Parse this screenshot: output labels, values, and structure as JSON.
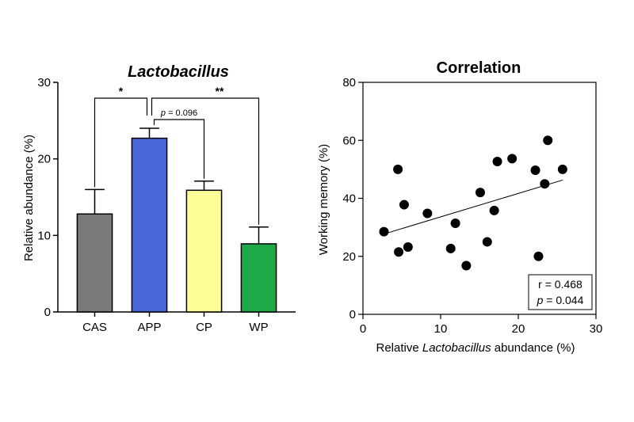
{
  "chart_data": [
    {
      "type": "bar",
      "title": "Lactobacillus",
      "xlabel": "",
      "ylabel": "Relative abundance (%)",
      "ylim": [
        0,
        30
      ],
      "yticks": [
        "0",
        "10",
        "20",
        "30"
      ],
      "categories": [
        "CAS",
        "APP",
        "CP",
        "WP"
      ],
      "values": [
        12.8,
        22.7,
        15.9,
        8.9
      ],
      "errors": [
        3.2,
        1.3,
        1.2,
        2.2
      ],
      "colors": [
        "#7a7a7a",
        "#4a67d8",
        "#ffff99",
        "#1fa84a"
      ],
      "comparisons": [
        {
          "from": "CAS",
          "to": "APP",
          "label": "*"
        },
        {
          "from": "APP",
          "to": "CP",
          "label_p": "p",
          "label_rest": " = 0.096"
        },
        {
          "from": "APP",
          "to": "WP",
          "label": "**"
        }
      ]
    },
    {
      "type": "scatter",
      "title": "Correlation",
      "xlabel_pre": "Relative ",
      "xlabel_italic": "Lactobacillus",
      "xlabel_post": " abundance (%)",
      "ylabel": "Working memory (%)",
      "xlim": [
        0,
        30
      ],
      "ylim": [
        0,
        80
      ],
      "xticks": [
        "0",
        "10",
        "20",
        "30"
      ],
      "yticks": [
        "0",
        "20",
        "40",
        "60",
        "80"
      ],
      "points": [
        {
          "x": 2.7,
          "y": 28.5
        },
        {
          "x": 4.5,
          "y": 50.0
        },
        {
          "x": 4.6,
          "y": 21.5
        },
        {
          "x": 5.3,
          "y": 37.8
        },
        {
          "x": 5.8,
          "y": 23.2
        },
        {
          "x": 8.3,
          "y": 34.8
        },
        {
          "x": 11.3,
          "y": 22.7
        },
        {
          "x": 11.9,
          "y": 31.4
        },
        {
          "x": 13.3,
          "y": 16.8
        },
        {
          "x": 15.1,
          "y": 42.0
        },
        {
          "x": 16.0,
          "y": 25.0
        },
        {
          "x": 16.9,
          "y": 35.8
        },
        {
          "x": 17.3,
          "y": 52.7
        },
        {
          "x": 19.2,
          "y": 53.7
        },
        {
          "x": 22.2,
          "y": 49.7
        },
        {
          "x": 22.6,
          "y": 20.0
        },
        {
          "x": 23.4,
          "y": 45.0
        },
        {
          "x": 23.8,
          "y": 60.0
        },
        {
          "x": 25.7,
          "y": 50.0
        }
      ],
      "fit_line": {
        "x": [
          2.7,
          25.7
        ],
        "y": [
          27.7,
          46.3
        ]
      },
      "stats": {
        "r_text": "r = 0.468",
        "p_symbol": "p",
        "p_rest": " = 0.044"
      }
    }
  ]
}
